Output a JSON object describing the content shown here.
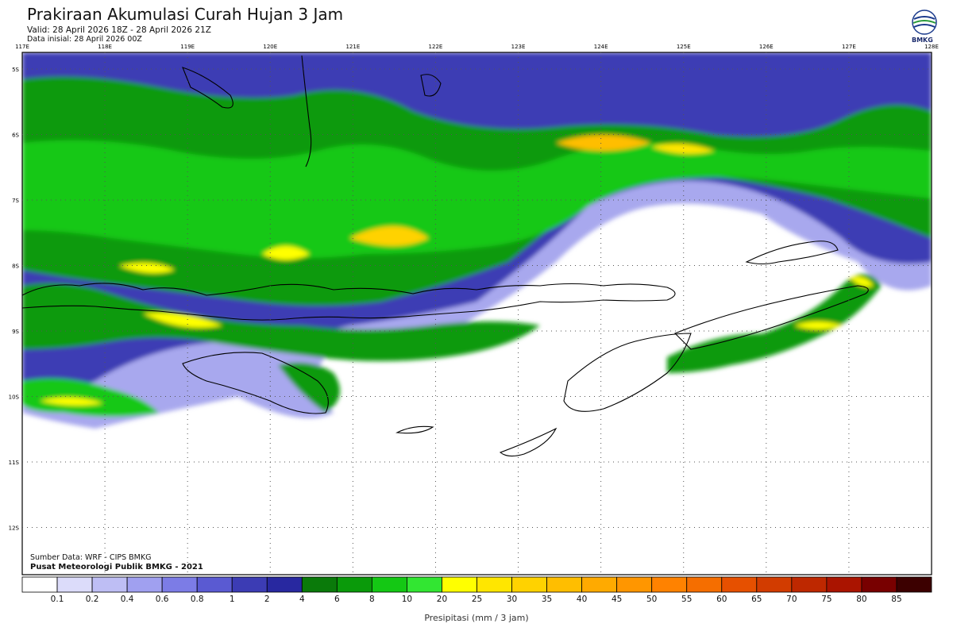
{
  "header": {
    "title": "Prakiraan Akumulasi Curah Hujan 3 Jam",
    "valid": "Valid: 28 April 2026 18Z - 28 April 2026 21Z",
    "init": "Data inisial: 28 April 2026 00Z"
  },
  "logo": {
    "text": "BMKG",
    "icon": "bmkg-logo-icon"
  },
  "map": {
    "lon_labels": [
      "117E",
      "118E",
      "119E",
      "120E",
      "121E",
      "122E",
      "123E",
      "124E",
      "125E",
      "126E",
      "127E",
      "128E"
    ],
    "lat_labels": [
      "5S",
      "6S",
      "7S",
      "8S",
      "9S",
      "10S",
      "11S",
      "12S"
    ],
    "grid": true
  },
  "footer": {
    "source": "Sumber Data: WRF - CIPS BMKG",
    "credit": "Pusat Meteorologi Publik BMKG - 2021"
  },
  "colorbar": {
    "title": "Presipitasi (mm / 3 jam)",
    "labels": [
      "0.1",
      "0.2",
      "0.4",
      "0.6",
      "0.8",
      "1",
      "2",
      "4",
      "6",
      "8",
      "10",
      "20",
      "25",
      "30",
      "35",
      "40",
      "45",
      "50",
      "55",
      "60",
      "65",
      "70",
      "75",
      "80",
      "85"
    ],
    "colors": [
      "#ffffff",
      "#dcdcfa",
      "#bebef4",
      "#a0a0f0",
      "#7c7ce6",
      "#5a5ad2",
      "#3c3cb4",
      "#2828a0",
      "#0a7a0a",
      "#0a9a0a",
      "#14c814",
      "#32e632",
      "#ffff00",
      "#ffe600",
      "#ffd200",
      "#ffbe00",
      "#ffaa00",
      "#ff9600",
      "#ff8200",
      "#f56e00",
      "#e65000",
      "#d23c00",
      "#be2800",
      "#aa1400",
      "#780000",
      "#3c0000"
    ]
  }
}
